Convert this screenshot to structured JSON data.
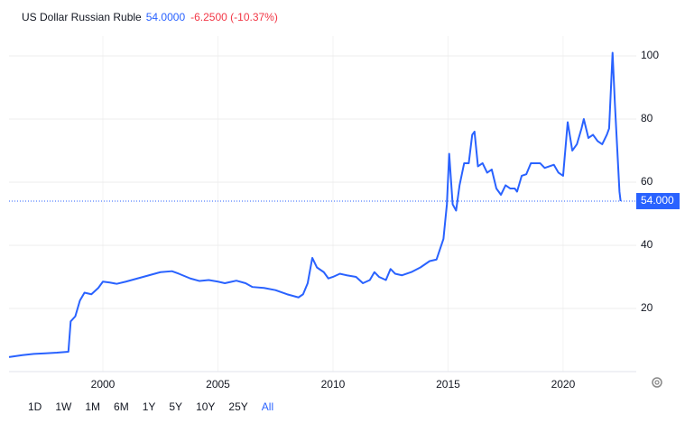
{
  "header": {
    "title": "US Dollar Russian Ruble",
    "price": "54.0000",
    "change": "-6.2500 (-10.37%)"
  },
  "range_buttons": [
    "1D",
    "1W",
    "1M",
    "6M",
    "1Y",
    "5Y",
    "10Y",
    "25Y",
    "All"
  ],
  "active_range": 8,
  "chart_data": {
    "type": "line",
    "x": [
      1995.92,
      1996.5,
      1997,
      1997.5,
      1998.0,
      1998.5,
      1998.6,
      1998.8,
      1999.0,
      1999.2,
      1999.5,
      1999.8,
      2000.0,
      2000.3,
      2000.6,
      2001.0,
      2001.5,
      2002.0,
      2002.5,
      2003.0,
      2003.3,
      2003.8,
      2004.2,
      2004.6,
      2005.0,
      2005.3,
      2005.8,
      2006.2,
      2006.5,
      2007.0,
      2007.5,
      2008.0,
      2008.5,
      2008.7,
      2008.9,
      2009.1,
      2009.3,
      2009.6,
      2009.8,
      2010.0,
      2010.3,
      2010.6,
      2011.0,
      2011.3,
      2011.6,
      2011.8,
      2012.0,
      2012.3,
      2012.5,
      2012.7,
      2013.0,
      2013.4,
      2013.8,
      2014.2,
      2014.5,
      2014.8,
      2014.95,
      2015.05,
      2015.2,
      2015.35,
      2015.5,
      2015.7,
      2015.9,
      2016.05,
      2016.15,
      2016.3,
      2016.5,
      2016.7,
      2016.9,
      2017.1,
      2017.3,
      2017.5,
      2017.7,
      2017.9,
      2018.0,
      2018.2,
      2018.4,
      2018.6,
      2018.8,
      2019.0,
      2019.2,
      2019.4,
      2019.6,
      2019.8,
      2020.0,
      2020.2,
      2020.4,
      2020.6,
      2020.8,
      2020.9,
      2021.1,
      2021.3,
      2021.5,
      2021.7,
      2021.9,
      2022.0,
      2022.15,
      2022.25,
      2022.45,
      2022.5
    ],
    "series": [
      {
        "name": "US Dollar Russian Ruble",
        "color": "#2962ff",
        "values": [
          4.6,
          5.2,
          5.6,
          5.8,
          6.0,
          6.3,
          15.9,
          17.5,
          22.5,
          25,
          24.5,
          26.5,
          28.5,
          28.2,
          27.8,
          28.5,
          29.5,
          30.5,
          31.5,
          31.8,
          31,
          29.5,
          28.7,
          29,
          28.5,
          28,
          28.8,
          28,
          26.8,
          26.5,
          25.8,
          24.5,
          23.5,
          24.5,
          28,
          36,
          33,
          31.5,
          29.5,
          30,
          31,
          30.5,
          30,
          28,
          29,
          31.5,
          30,
          29,
          32.5,
          31,
          30.5,
          31.5,
          33,
          35,
          35.5,
          42,
          53,
          69,
          53,
          51,
          59,
          66,
          66,
          75,
          76,
          65,
          66,
          63,
          64,
          58,
          56,
          59,
          58,
          58,
          57,
          62,
          62.5,
          66,
          66,
          66,
          64.5,
          65,
          65.5,
          63,
          62,
          79,
          70,
          72,
          77,
          80,
          74,
          75,
          73,
          72,
          75,
          77,
          101,
          85,
          57,
          54
        ]
      }
    ],
    "last_price": {
      "value": 54,
      "label": "54.000"
    },
    "xlim": [
      1995.92,
      2023.18
    ],
    "ylim": [
      0,
      117.7
    ],
    "xticks": [
      2000,
      2005,
      2010,
      2015,
      2020
    ],
    "yticks": [
      20,
      40,
      60,
      80,
      100
    ],
    "grid": true
  }
}
